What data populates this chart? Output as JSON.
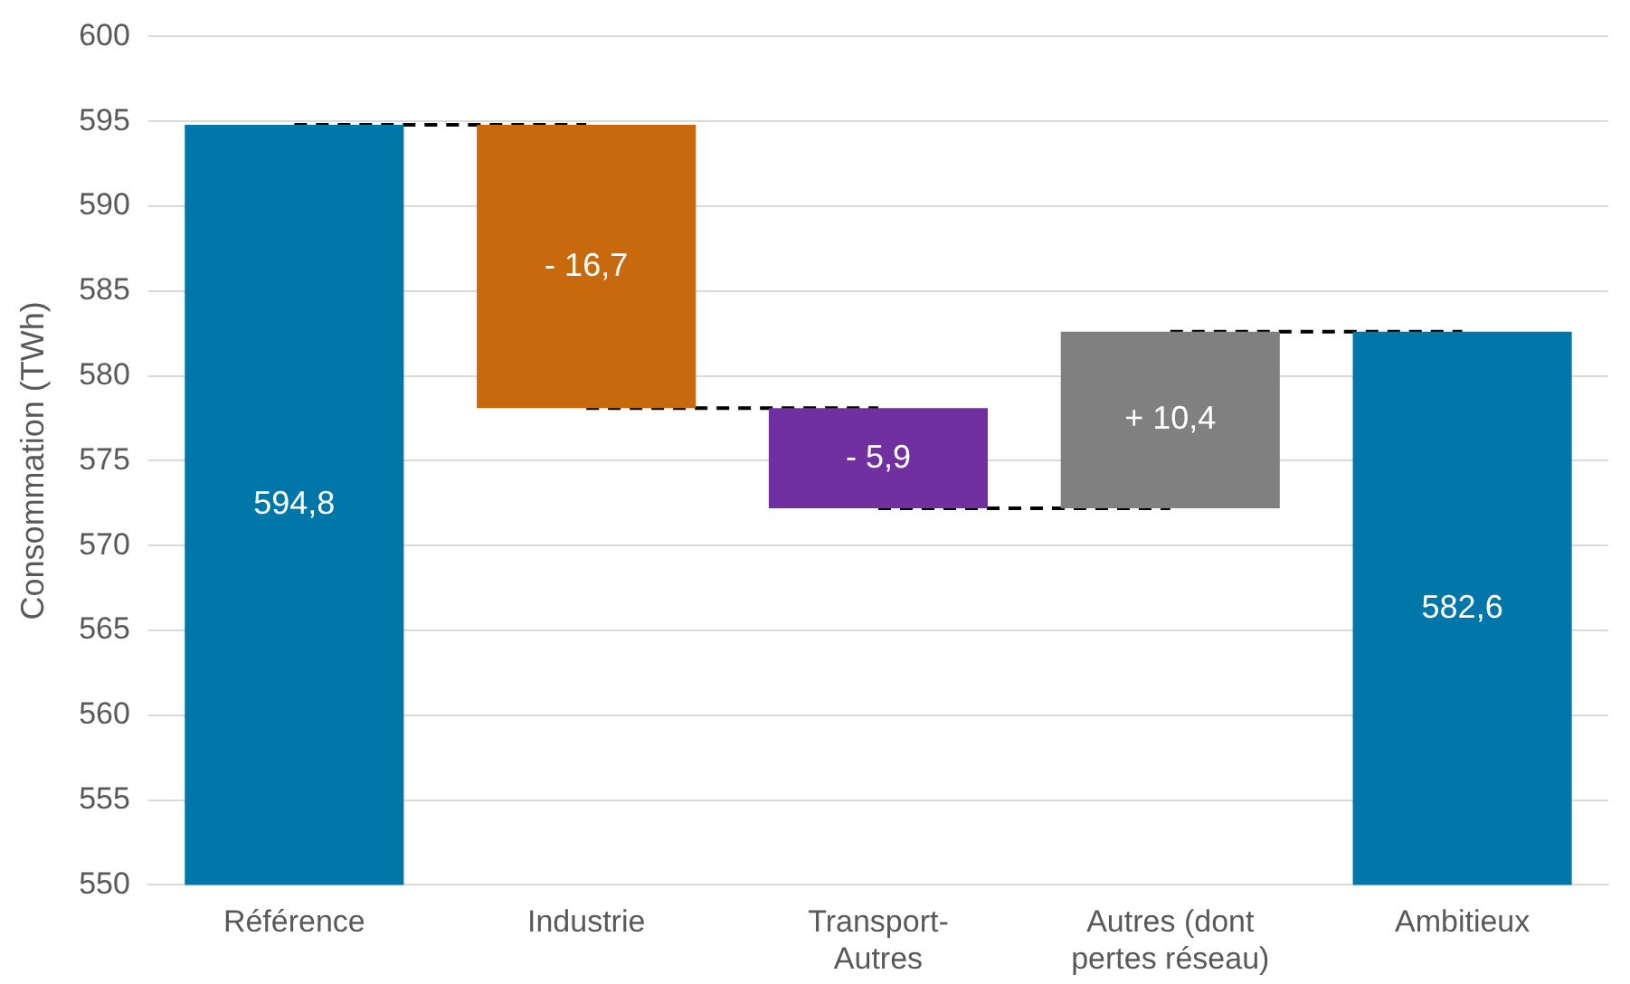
{
  "chart_data": {
    "type": "bar",
    "ylabel": "Consommation (TWh)",
    "categories": [
      "Référence",
      "Industrie",
      "Transport-\nAutres",
      "Autres (dont\npertes réseau)",
      "Ambitieux"
    ],
    "values": [
      594.8,
      -16.7,
      -5.9,
      10.4,
      582.6
    ],
    "base": [
      null,
      594.8,
      578.1,
      572.2,
      null
    ],
    "colors": [
      "#0077a8",
      "#c8690e",
      "#7030a0",
      "#808080",
      "#0077a8"
    ],
    "value_labels": [
      "594,8",
      "- 16,7",
      "- 5,9",
      "+ 10,4",
      "582,6"
    ],
    "series": [
      {
        "type": "line",
        "color": "#000000",
        "line_style": "dashed",
        "x": [
          "Référence",
          "Industrie"
        ],
        "values": [
          594.8,
          594.8
        ]
      },
      {
        "type": "line",
        "color": "#000000",
        "line_style": "dashed",
        "x": [
          "Industrie",
          "Transport-\nAutres"
        ],
        "values": [
          578.1,
          578.1
        ]
      },
      {
        "type": "line",
        "color": "#000000",
        "line_style": "dashed",
        "x": [
          "Transport-\nAutres",
          "Autres (dont\npertes réseau)"
        ],
        "values": [
          572.2,
          572.2
        ]
      },
      {
        "type": "line",
        "color": "#000000",
        "line_style": "dashed",
        "x": [
          "Autres (dont\npertes réseau)",
          "Ambitieux"
        ],
        "values": [
          582.6,
          582.6
        ]
      }
    ],
    "ylim": [
      550,
      600
    ],
    "yticks": [
      550,
      555,
      560,
      565,
      570,
      575,
      580,
      585,
      590,
      595,
      600
    ],
    "grid": "y",
    "legend": false
  }
}
